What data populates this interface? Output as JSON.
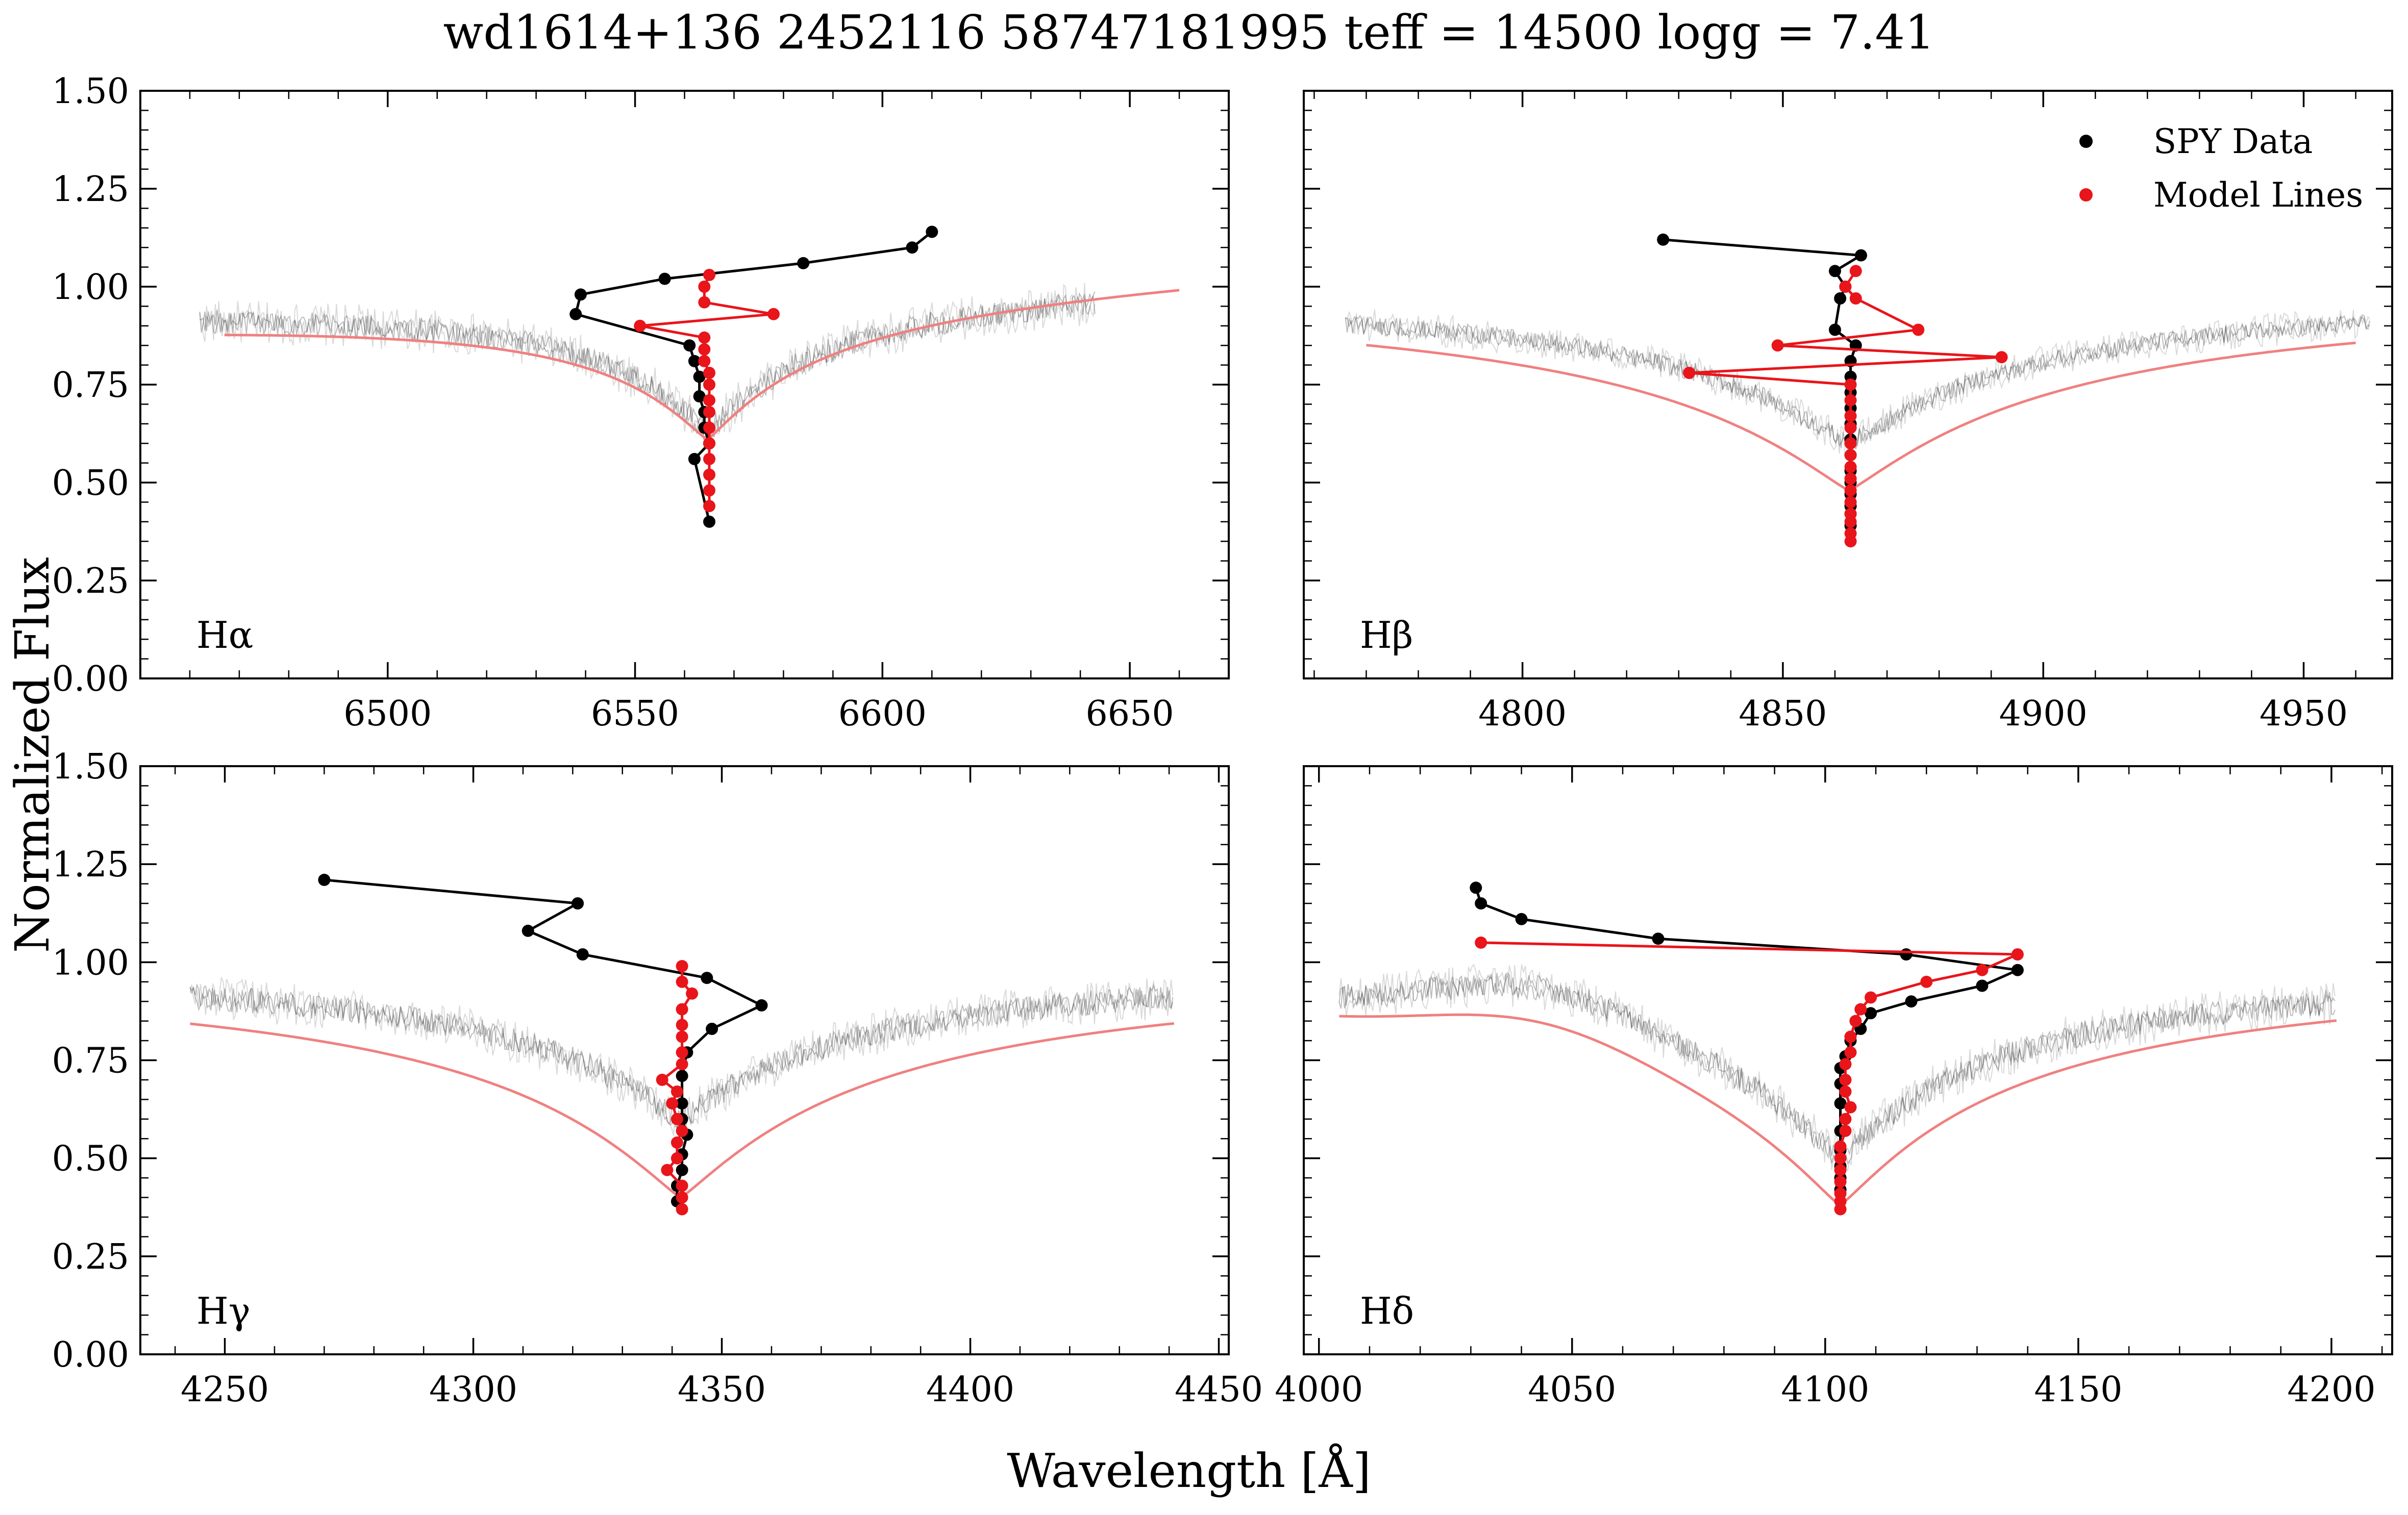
{
  "figure": {
    "title": "wd1614+136 2452116 58747181995 teff = 14500 logg = 7.41",
    "xlabel": "Wavelength [Å]",
    "ylabel": "Normalized Flux"
  },
  "colors": {
    "spy_data": "#000000",
    "model_lines": "#e8151b",
    "spectrum": "#333333",
    "model_curve": "#f08080"
  },
  "chart_data": [
    {
      "type": "line",
      "panel_label": "Hα",
      "line_center": 6564.6,
      "xlim": [
        6450,
        6670
      ],
      "ylim": [
        0,
        1.5
      ],
      "xticks": [
        6500,
        6550,
        6600,
        6650
      ],
      "yticks": [
        0.0,
        0.25,
        0.5,
        0.75,
        1.0,
        1.25,
        1.5
      ],
      "spectrum": {
        "x_range": [
          6462,
          6643
        ],
        "depth": 0.37,
        "width": 22,
        "continuum_tilt": 0.035,
        "noise": 0.04
      },
      "model": {
        "x_range": [
          6467,
          6660
        ],
        "depth": 0.39,
        "width": 24,
        "continuum_tilt": 0.06
      },
      "series": [
        {
          "name": "SPY Data",
          "x": [
            6610,
            6606,
            6584,
            6556,
            6539,
            6538,
            6561,
            6562,
            6563,
            6563,
            6564,
            6564,
            6565,
            6562,
            6565
          ],
          "y": [
            1.14,
            1.1,
            1.06,
            1.02,
            0.98,
            0.93,
            0.85,
            0.81,
            0.77,
            0.72,
            0.68,
            0.64,
            0.6,
            0.56,
            0.4
          ]
        },
        {
          "name": "Model Lines",
          "x": [
            6565,
            6564,
            6564,
            6578,
            6551,
            6564,
            6564,
            6564,
            6565,
            6565,
            6565,
            6565,
            6565,
            6565,
            6565,
            6565,
            6565,
            6565
          ],
          "y": [
            1.03,
            1.0,
            0.96,
            0.93,
            0.9,
            0.87,
            0.84,
            0.81,
            0.78,
            0.75,
            0.71,
            0.68,
            0.64,
            0.6,
            0.56,
            0.52,
            0.48,
            0.44
          ]
        }
      ]
    },
    {
      "type": "line",
      "panel_label": "Hβ",
      "line_center": 4862.7,
      "xlim": [
        4758,
        4967
      ],
      "ylim": [
        0,
        1.5
      ],
      "xticks": [
        4800,
        4850,
        4900,
        4950
      ],
      "yticks": [
        0.0,
        0.25,
        0.5,
        0.75,
        1.0,
        1.25,
        1.5
      ],
      "spectrum": {
        "x_range": [
          4766,
          4963
        ],
        "depth": 0.4,
        "width": 35,
        "continuum_tilt": 0.0,
        "noise": 0.03
      },
      "model": {
        "x_range": [
          4770,
          4960
        ],
        "depth": 0.52,
        "width": 42,
        "continuum_tilt": 0.0
      },
      "series": [
        {
          "name": "SPY Data",
          "x": [
            4827,
            4865,
            4860,
            4862,
            4861,
            4860,
            4864,
            4863,
            4863,
            4863,
            4863,
            4863,
            4863,
            4863,
            4863,
            4863,
            4863,
            4863,
            4863,
            4863
          ],
          "y": [
            1.12,
            1.08,
            1.04,
            1.0,
            0.97,
            0.89,
            0.85,
            0.81,
            0.77,
            0.73,
            0.69,
            0.65,
            0.61,
            0.57,
            0.53,
            0.5,
            0.47,
            0.44,
            0.42,
            0.39
          ]
        },
        {
          "name": "Model Lines",
          "x": [
            4864,
            4862,
            4864,
            4876,
            4849,
            4892,
            4832,
            4863,
            4863,
            4863,
            4863,
            4863,
            4863,
            4863,
            4863,
            4863,
            4863,
            4863,
            4863,
            4863,
            4863
          ],
          "y": [
            1.04,
            1.0,
            0.97,
            0.89,
            0.85,
            0.82,
            0.78,
            0.75,
            0.71,
            0.67,
            0.64,
            0.6,
            0.57,
            0.54,
            0.51,
            0.48,
            0.45,
            0.42,
            0.4,
            0.37,
            0.35
          ]
        }
      ]
    },
    {
      "type": "line",
      "panel_label": "Hγ",
      "line_center": 4341.7,
      "xlim": [
        4233,
        4452
      ],
      "ylim": [
        0,
        1.5
      ],
      "xticks": [
        4250,
        4300,
        4350,
        4400,
        4450
      ],
      "yticks": [
        0.0,
        0.25,
        0.5,
        0.75,
        1.0,
        1.25,
        1.5
      ],
      "spectrum": {
        "x_range": [
          4243,
          4441
        ],
        "depth": 0.4,
        "width": 33,
        "continuum_tilt": 0.0,
        "noise": 0.04
      },
      "model": {
        "x_range": [
          4243,
          4441
        ],
        "depth": 0.6,
        "width": 40,
        "continuum_tilt": 0.0
      },
      "series": [
        {
          "name": "SPY Data",
          "x": [
            4270,
            4321,
            4311,
            4322,
            4347,
            4358,
            4348,
            4343,
            4342,
            4342,
            4342,
            4343,
            4342,
            4342,
            4341,
            4341
          ],
          "y": [
            1.21,
            1.15,
            1.08,
            1.02,
            0.96,
            0.89,
            0.83,
            0.77,
            0.71,
            0.64,
            0.6,
            0.56,
            0.51,
            0.47,
            0.43,
            0.39
          ]
        },
        {
          "name": "Model Lines",
          "x": [
            4342,
            4342,
            4344,
            4342,
            4342,
            4342,
            4342,
            4342,
            4338,
            4341,
            4340,
            4341,
            4342,
            4341,
            4341,
            4339,
            4342,
            4342,
            4342
          ],
          "y": [
            0.99,
            0.95,
            0.92,
            0.88,
            0.84,
            0.81,
            0.77,
            0.74,
            0.7,
            0.67,
            0.64,
            0.6,
            0.57,
            0.54,
            0.5,
            0.47,
            0.43,
            0.4,
            0.37
          ]
        }
      ]
    },
    {
      "type": "line",
      "panel_label": "Hδ",
      "line_center": 4102.9,
      "xlim": [
        3997,
        4212
      ],
      "ylim": [
        0,
        1.5
      ],
      "xticks": [
        4000,
        4050,
        4100,
        4150,
        4200
      ],
      "yticks": [
        0.0,
        0.25,
        0.5,
        0.75,
        1.0,
        1.25,
        1.5
      ],
      "spectrum": {
        "x_range": [
          4004,
          4201
        ],
        "depth": 0.5,
        "width": 30,
        "continuum_tilt": 0.0,
        "hump": 0.09,
        "noise": 0.04
      },
      "model": {
        "x_range": [
          4004,
          4201
        ],
        "depth": 0.62,
        "width": 36,
        "continuum_tilt": 0.0,
        "hump": 0.07
      },
      "series": [
        {
          "name": "SPY Data",
          "x": [
            4031,
            4032,
            4040,
            4067,
            4116,
            4138,
            4131,
            4117,
            4109,
            4107,
            4105,
            4104,
            4103,
            4103,
            4103,
            4103,
            4103,
            4103,
            4103,
            4103
          ],
          "y": [
            1.19,
            1.15,
            1.11,
            1.06,
            1.02,
            0.98,
            0.94,
            0.9,
            0.87,
            0.83,
            0.8,
            0.76,
            0.73,
            0.69,
            0.64,
            0.57,
            0.52,
            0.48,
            0.45,
            0.42
          ]
        },
        {
          "name": "Model Lines",
          "x": [
            4032,
            4138,
            4131,
            4120,
            4109,
            4107,
            4106,
            4105,
            4105,
            4104,
            4104,
            4104,
            4105,
            4104,
            4104,
            4103,
            4103,
            4103,
            4103,
            4103,
            4103,
            4103
          ],
          "y": [
            1.05,
            1.02,
            0.98,
            0.95,
            0.91,
            0.88,
            0.85,
            0.81,
            0.77,
            0.74,
            0.7,
            0.67,
            0.63,
            0.6,
            0.57,
            0.53,
            0.5,
            0.47,
            0.44,
            0.41,
            0.39,
            0.37
          ]
        }
      ]
    }
  ]
}
